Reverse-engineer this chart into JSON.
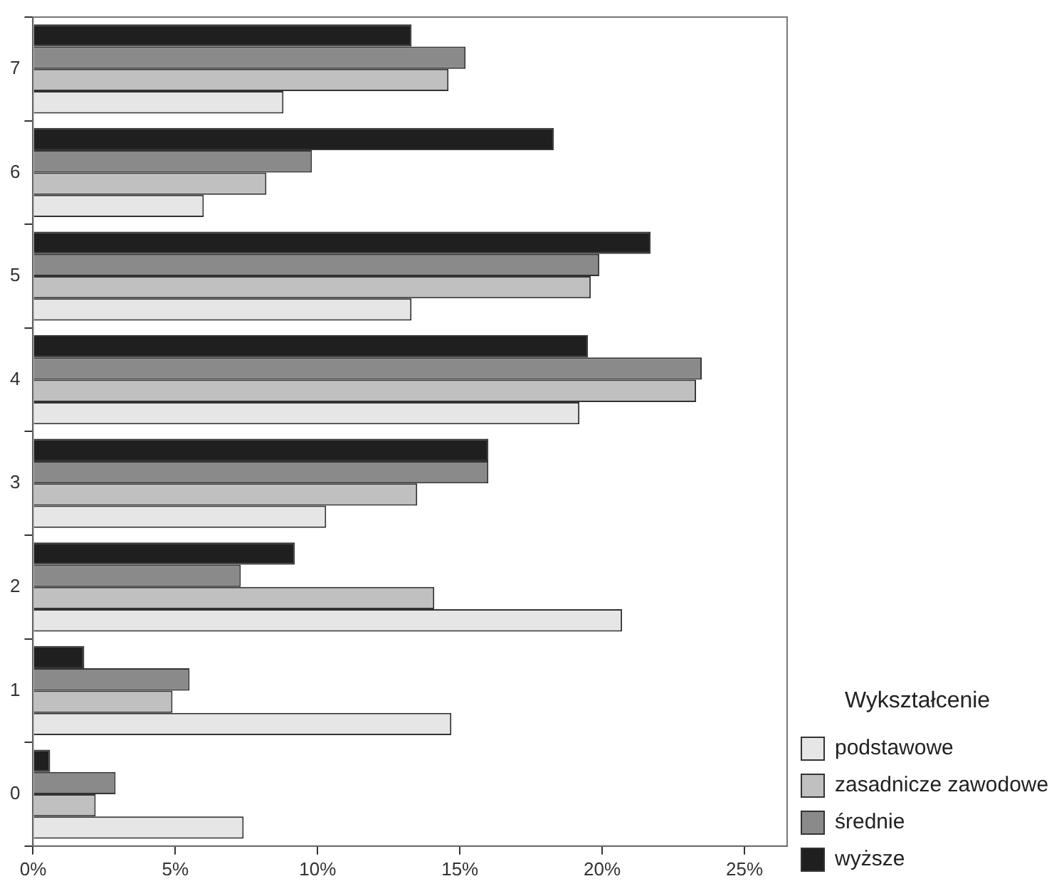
{
  "chart_data": {
    "type": "bar",
    "orientation": "horizontal",
    "legend_title": "Wykształcenie",
    "legend": "right",
    "grid": false,
    "categories": [
      "7",
      "6",
      "5",
      "4",
      "3",
      "2",
      "1",
      "0"
    ],
    "xlim": [
      0,
      26.5
    ],
    "xticks": [
      {
        "value": 0,
        "label": "0%"
      },
      {
        "value": 5,
        "label": "5%"
      },
      {
        "value": 10,
        "label": "10%"
      },
      {
        "value": 15,
        "label": "15%"
      },
      {
        "value": 20,
        "label": "20%"
      },
      {
        "value": 25,
        "label": "25%"
      }
    ],
    "series": [
      {
        "name": "podstawowe",
        "color": "#e6e6e6",
        "values": [
          8.8,
          6.0,
          13.3,
          19.2,
          10.3,
          20.7,
          14.7,
          7.4
        ]
      },
      {
        "name": "zasadnicze zawodowe",
        "color": "#c0c0c0",
        "values": [
          14.6,
          8.2,
          19.6,
          23.3,
          13.5,
          14.1,
          4.9,
          2.2
        ]
      },
      {
        "name": "średnie",
        "color": "#8a8a8a",
        "values": [
          15.2,
          9.8,
          19.9,
          23.5,
          16.0,
          7.3,
          5.5,
          2.9
        ]
      },
      {
        "name": "wyższe",
        "color": "#1f1f1f",
        "values": [
          13.3,
          18.3,
          21.7,
          19.5,
          16.0,
          9.2,
          1.8,
          0.6
        ]
      }
    ]
  }
}
